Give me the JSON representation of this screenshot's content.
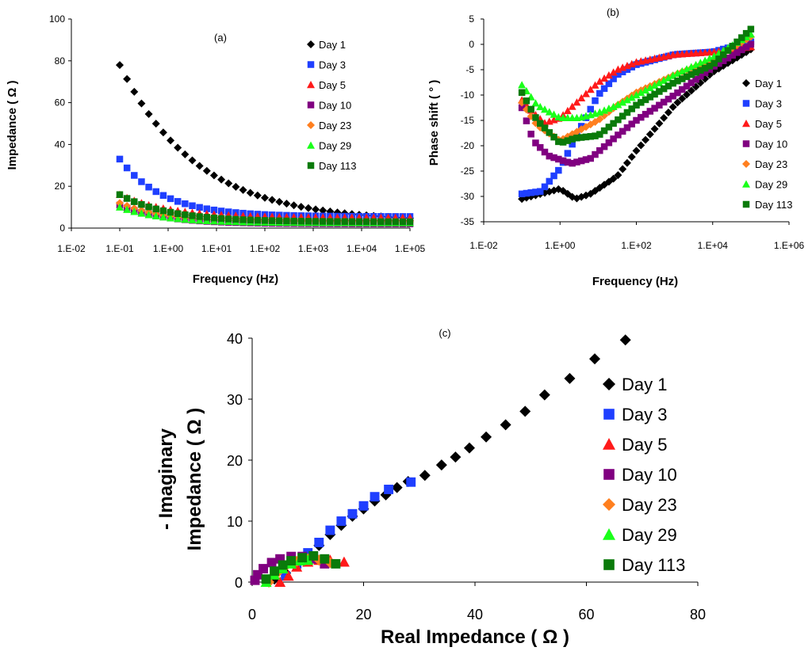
{
  "chart_data": [
    {
      "panel": "(a)",
      "type": "scatter",
      "title": "(a)",
      "xlabel": "Frequency (Hz)",
      "ylabel": "Impedance ( Ω )",
      "xscale": "log",
      "xlim_exp": [
        -2,
        5
      ],
      "xtick_labels": [
        "1.E-02",
        "1.E-01",
        "1.E+00",
        "1.E+01",
        "1.E+02",
        "1.E+03",
        "1.E+04",
        "1.E+05"
      ],
      "ylim": [
        0,
        100
      ],
      "ytick_labels": [
        "0",
        "20",
        "40",
        "60",
        "80",
        "100"
      ],
      "legend_position": "top-right",
      "x_range": [
        0.1,
        100000
      ],
      "series": [
        {
          "name": "Day 1",
          "color": "#000000",
          "marker": "diamond",
          "start": 78,
          "end": 3,
          "decay_decades": 1.6
        },
        {
          "name": "Day 3",
          "color": "#1f3fff",
          "marker": "square",
          "start": 33,
          "end": 5.5,
          "decay_decades": 0.9
        },
        {
          "name": "Day 5",
          "color": "#ff1a1a",
          "marker": "triangle",
          "start": 16,
          "end": 5,
          "decay_decades": 1.0
        },
        {
          "name": "Day 10",
          "color": "#800080",
          "marker": "square",
          "start": 11,
          "end": 2,
          "decay_decades": 0.9
        },
        {
          "name": "Day 23",
          "color": "#ff7f1f",
          "marker": "diamond",
          "start": 12,
          "end": 3,
          "decay_decades": 0.9
        },
        {
          "name": "Day 29",
          "color": "#1aff1a",
          "marker": "triangle",
          "start": 10,
          "end": 2.5,
          "decay_decades": 0.9
        },
        {
          "name": "Day 113",
          "color": "#0a7a0a",
          "marker": "square",
          "start": 16,
          "end": 3,
          "decay_decades": 1.0
        }
      ]
    },
    {
      "panel": "(b)",
      "type": "scatter",
      "title": "(b)",
      "xlabel": "Frequency (Hz)",
      "ylabel": "Phase shift ( ° )",
      "xscale": "log",
      "xlim_exp": [
        -2,
        6
      ],
      "xtick_labels": [
        "1.E-02",
        "1.E+00",
        "1.E+02",
        "1.E+04",
        "1.E+06"
      ],
      "ylim": [
        -35,
        5
      ],
      "ytick_labels": [
        "5",
        "0",
        "-5",
        "-10",
        "-15",
        "-20",
        "-25",
        "-30",
        "-35"
      ],
      "legend_position": "right",
      "x_range": [
        0.1,
        100000
      ],
      "series": [
        {
          "name": "Day 1",
          "color": "#000000",
          "marker": "diamond",
          "points": [
            [
              -1,
              -30.5
            ],
            [
              -0.5,
              -29.5
            ],
            [
              0,
              -28.5
            ],
            [
              0.4,
              -30.5
            ],
            [
              0.8,
              -29.5
            ],
            [
              1.5,
              -26
            ],
            [
              2,
              -21
            ],
            [
              3,
              -12
            ],
            [
              4,
              -5.5
            ],
            [
              5,
              -1
            ]
          ]
        },
        {
          "name": "Day 3",
          "color": "#1f3fff",
          "marker": "square",
          "points": [
            [
              -1,
              -29.5
            ],
            [
              -0.5,
              -29
            ],
            [
              0,
              -24.5
            ],
            [
              0.5,
              -17
            ],
            [
              1,
              -10
            ],
            [
              1.5,
              -6
            ],
            [
              2,
              -4
            ],
            [
              3,
              -2
            ],
            [
              4,
              -1.5
            ],
            [
              5,
              0.5
            ]
          ]
        },
        {
          "name": "Day 5",
          "color": "#ff1a1a",
          "marker": "triangle",
          "points": [
            [
              -1,
              -11
            ],
            [
              -0.7,
              -13.5
            ],
            [
              -0.4,
              -15.5
            ],
            [
              0,
              -14.5
            ],
            [
              0.5,
              -11
            ],
            [
              1,
              -7.5
            ],
            [
              1.5,
              -5
            ],
            [
              2,
              -3.5
            ],
            [
              3,
              -2
            ],
            [
              4,
              -1.5
            ],
            [
              5,
              -0.5
            ]
          ]
        },
        {
          "name": "Day 10",
          "color": "#800080",
          "marker": "square",
          "points": [
            [
              -1,
              -12.5
            ],
            [
              -0.7,
              -19
            ],
            [
              -0.3,
              -22
            ],
            [
              0.3,
              -23.5
            ],
            [
              0.8,
              -22.5
            ],
            [
              1.5,
              -18
            ],
            [
              2,
              -15
            ],
            [
              3,
              -10
            ],
            [
              4,
              -4.5
            ],
            [
              5,
              0
            ]
          ]
        },
        {
          "name": "Day 23",
          "color": "#ff7f1f",
          "marker": "diamond",
          "points": [
            [
              -1,
              -11.5
            ],
            [
              -0.6,
              -16
            ],
            [
              0,
              -19
            ],
            [
              0.5,
              -17
            ],
            [
              1,
              -15
            ],
            [
              1.5,
              -12
            ],
            [
              2,
              -9.5
            ],
            [
              3,
              -6
            ],
            [
              4,
              -3
            ],
            [
              5,
              1.5
            ]
          ]
        },
        {
          "name": "Day 29",
          "color": "#1aff1a",
          "marker": "triangle",
          "points": [
            [
              -1,
              -8
            ],
            [
              -0.6,
              -12
            ],
            [
              0,
              -14.5
            ],
            [
              0.5,
              -14.5
            ],
            [
              1,
              -13.5
            ],
            [
              1.5,
              -12
            ],
            [
              2,
              -10
            ],
            [
              3,
              -6
            ],
            [
              4,
              -2.5
            ],
            [
              5,
              2
            ]
          ]
        },
        {
          "name": "Day 113",
          "color": "#0a7a0a",
          "marker": "square",
          "points": [
            [
              -1,
              -9.5
            ],
            [
              -0.6,
              -15
            ],
            [
              0,
              -19.5
            ],
            [
              0.4,
              -18.5
            ],
            [
              1,
              -18
            ],
            [
              1.5,
              -15
            ],
            [
              2,
              -12
            ],
            [
              3,
              -7.5
            ],
            [
              4,
              -4
            ],
            [
              5,
              3
            ]
          ]
        }
      ]
    },
    {
      "panel": "(c)",
      "type": "scatter",
      "title": "(c)",
      "xlabel": "Real Impedance ( Ω )",
      "ylabel_line1": "- Imaginary",
      "ylabel_line2": "Impedance ( Ω )",
      "xlim": [
        0,
        80
      ],
      "xtick_labels": [
        "0",
        "20",
        "40",
        "60",
        "80"
      ],
      "ylim": [
        0,
        40
      ],
      "ytick_labels": [
        "0",
        "10",
        "20",
        "30",
        "40"
      ],
      "legend_position": "right",
      "series": [
        {
          "name": "Day 1",
          "color": "#000000",
          "marker": "diamond",
          "points": [
            [
              4,
              0.5
            ],
            [
              6,
              1.5
            ],
            [
              8,
              3
            ],
            [
              10,
              4.5
            ],
            [
              12,
              6
            ],
            [
              14,
              7.8
            ],
            [
              16,
              9.3
            ],
            [
              18,
              10.8
            ],
            [
              20,
              12
            ],
            [
              22,
              13.3
            ],
            [
              24,
              14.3
            ],
            [
              26,
              15.5
            ],
            [
              28,
              16.5
            ],
            [
              31,
              17.5
            ],
            [
              34,
              19.2
            ],
            [
              36.5,
              20.5
            ],
            [
              39,
              22
            ],
            [
              42,
              23.8
            ],
            [
              45.5,
              25.8
            ],
            [
              49,
              28
            ],
            [
              52.5,
              30.7
            ],
            [
              57,
              33.4
            ],
            [
              61.5,
              36.6
            ],
            [
              67,
              39.7
            ]
          ]
        },
        {
          "name": "Day 3",
          "color": "#1f3fff",
          "marker": "square",
          "points": [
            [
              6,
              1
            ],
            [
              8,
              3
            ],
            [
              10,
              4.8
            ],
            [
              12,
              6.5
            ],
            [
              14,
              8.5
            ],
            [
              16,
              10
            ],
            [
              18,
              11.2
            ],
            [
              20,
              12.5
            ],
            [
              22,
              14
            ],
            [
              24.5,
              15.2
            ],
            [
              28.5,
              16.4
            ]
          ]
        },
        {
          "name": "Day 5",
          "color": "#ff1a1a",
          "marker": "triangle",
          "points": [
            [
              5,
              0
            ],
            [
              6.5,
              1
            ],
            [
              8,
              2.5
            ],
            [
              10,
              3.3
            ],
            [
              12,
              3.6
            ],
            [
              14,
              3.6
            ],
            [
              16.5,
              3.3
            ]
          ]
        },
        {
          "name": "Day 10",
          "color": "#800080",
          "marker": "square",
          "points": [
            [
              0.5,
              0.3
            ],
            [
              1,
              1.2
            ],
            [
              2,
              2.2
            ],
            [
              3.5,
              3.2
            ],
            [
              5,
              3.8
            ],
            [
              7,
              4.2
            ],
            [
              9,
              4.2
            ],
            [
              11,
              3.8
            ],
            [
              13,
              3
            ]
          ]
        },
        {
          "name": "Day 23",
          "color": "#ff7f1f",
          "marker": "diamond",
          "points": [
            [
              3,
              0
            ],
            [
              4.5,
              1.5
            ],
            [
              6,
              2.6
            ],
            [
              8,
              3.4
            ],
            [
              10,
              3.8
            ],
            [
              12,
              3.6
            ],
            [
              14,
              3.2
            ]
          ]
        },
        {
          "name": "Day 29",
          "color": "#1aff1a",
          "marker": "triangle",
          "points": [
            [
              2.5,
              0
            ],
            [
              4,
              1.2
            ],
            [
              5.5,
              2.2
            ],
            [
              7,
              3
            ],
            [
              8.5,
              3.5
            ],
            [
              10,
              3.6
            ]
          ]
        },
        {
          "name": "Day 113",
          "color": "#0a7a0a",
          "marker": "square",
          "points": [
            [
              2.5,
              0.5
            ],
            [
              4,
              1.8
            ],
            [
              5.5,
              2.8
            ],
            [
              7,
              3.5
            ],
            [
              9,
              4
            ],
            [
              11,
              4.3
            ],
            [
              13,
              3.8
            ],
            [
              15,
              3
            ]
          ]
        }
      ]
    }
  ]
}
